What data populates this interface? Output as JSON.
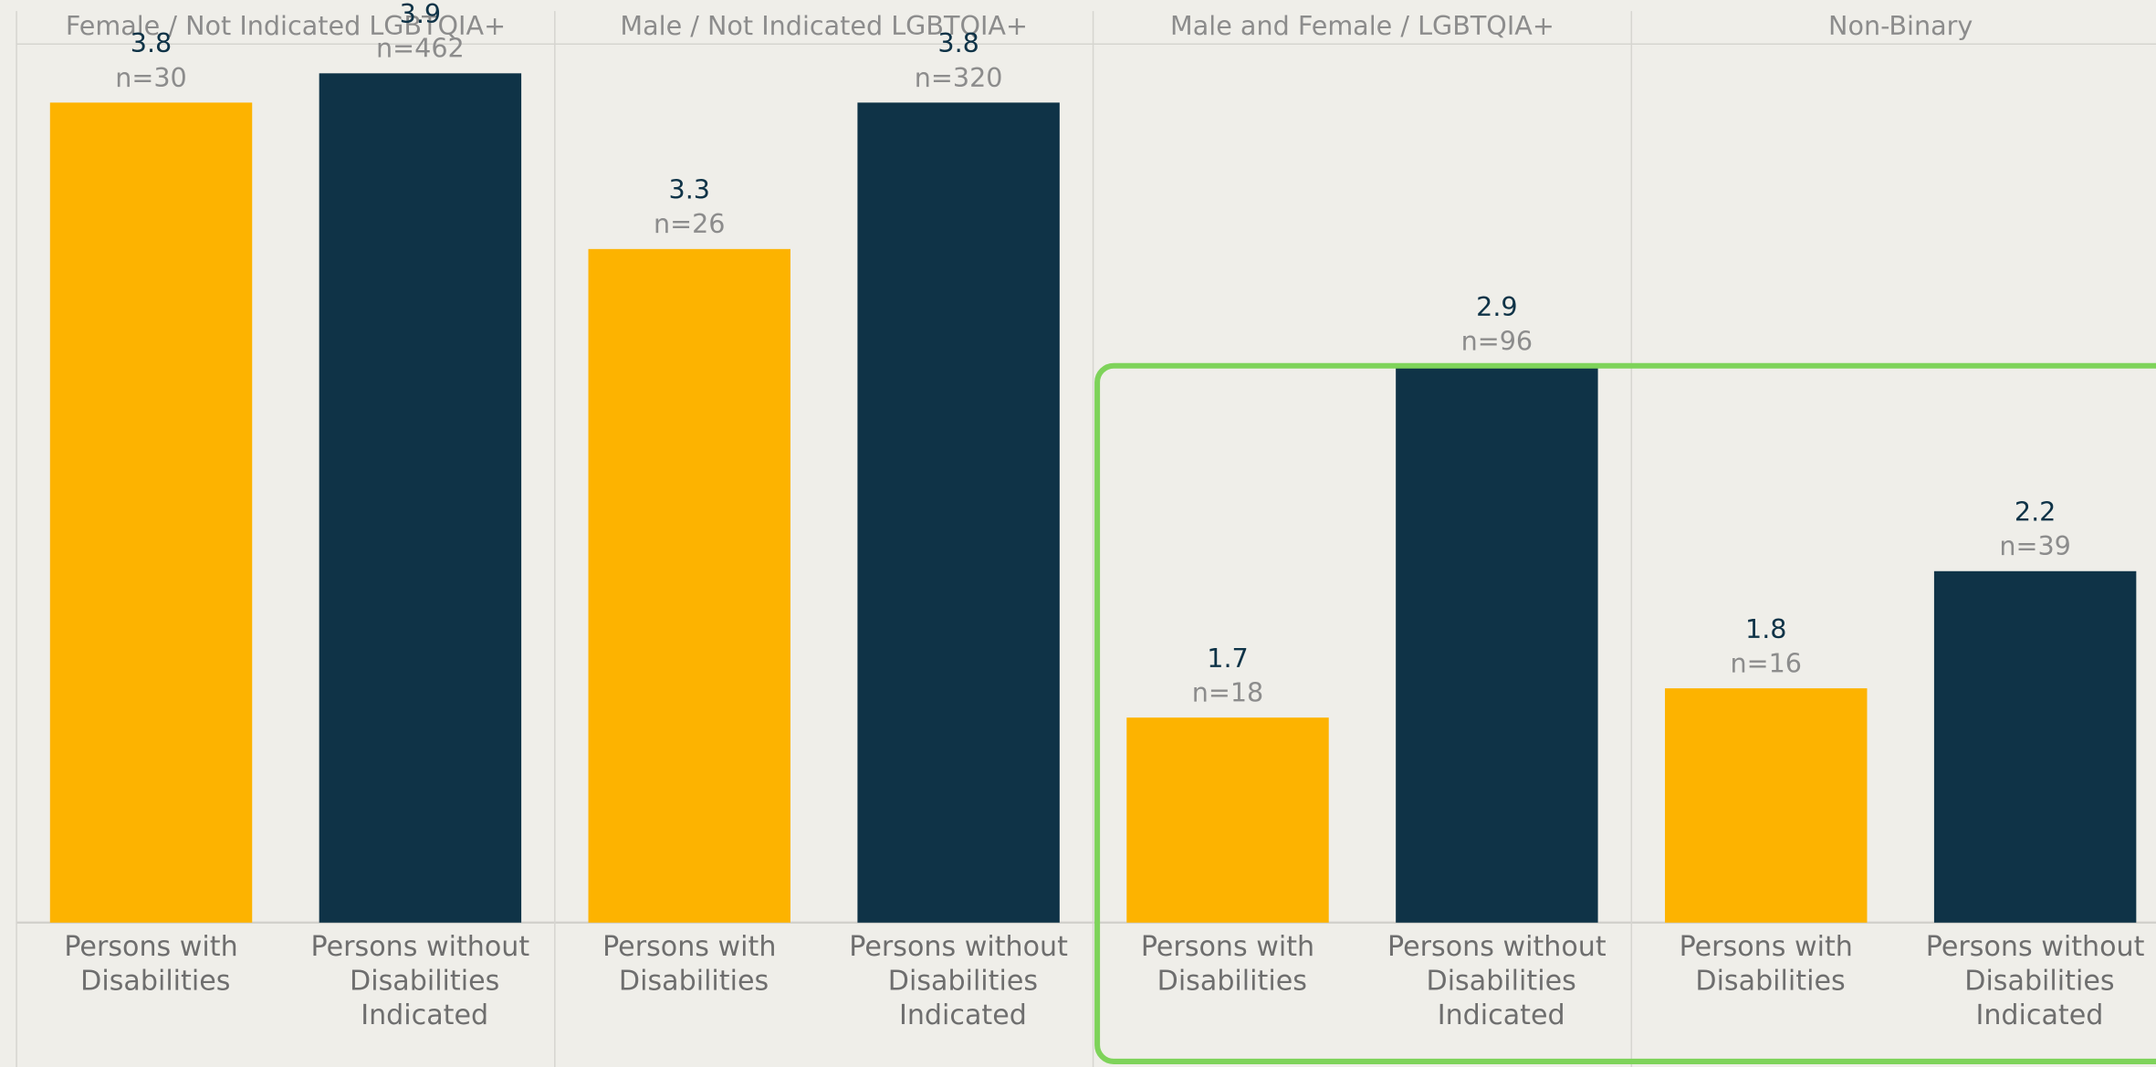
{
  "chart_data": {
    "type": "bar",
    "categories": [
      "Persons with Disabilities",
      "Persons without Disabilities Indicated"
    ],
    "colors": [
      "#FDB300",
      "#0F3347"
    ],
    "ylim": [
      1,
      4
    ],
    "facets": [
      {
        "title": "Female / Not Indicated LGBTQIA+",
        "values": [
          3.8,
          3.9
        ],
        "n_labels": [
          "n=30",
          "n=462"
        ]
      },
      {
        "title": "Male / Not Indicated LGBTQIA+",
        "values": [
          3.3,
          3.8
        ],
        "n_labels": [
          "n=26",
          "n=320"
        ]
      },
      {
        "title": "Male and Female / LGBTQIA+",
        "values": [
          1.7,
          2.9
        ],
        "n_labels": [
          "n=18",
          "n=96"
        ]
      },
      {
        "title": "Non-Binary",
        "values": [
          1.8,
          2.2
        ],
        "n_labels": [
          "n=16",
          "n=39"
        ]
      }
    ]
  }
}
